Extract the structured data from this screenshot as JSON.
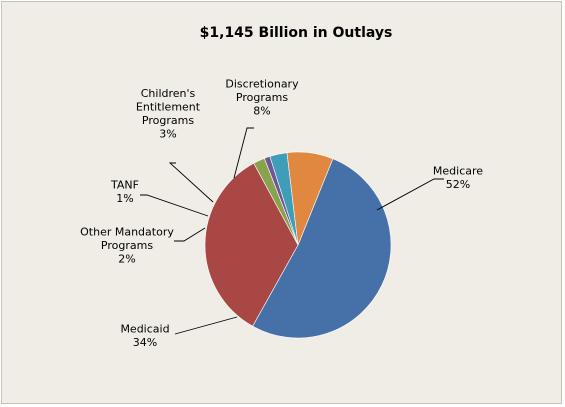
{
  "chart_data": {
    "type": "pie",
    "title": "$1,145 Billion in Outlays",
    "start_angle_deg": 22,
    "direction": "clockwise",
    "slices": [
      {
        "name": "Medicare",
        "value": 52,
        "label_lines": [
          "Medicare",
          "52%"
        ],
        "color": "#4570a8"
      },
      {
        "name": "Medicaid",
        "value": 34,
        "label_lines": [
          "Medicaid",
          "34%"
        ],
        "color": "#a84744"
      },
      {
        "name": "Other Mandatory Programs",
        "value": 2,
        "label_lines": [
          "Other Mandatory",
          "Programs",
          "2%"
        ],
        "color": "#88a24e"
      },
      {
        "name": "TANF",
        "value": 1,
        "label_lines": [
          "TANF",
          "1%"
        ],
        "color": "#6e5697"
      },
      {
        "name": "Children's Entitlement Programs",
        "value": 3,
        "label_lines": [
          "Children's",
          "Entitlement",
          "Programs",
          "3%"
        ],
        "color": "#3e9db8"
      },
      {
        "name": "Discretionary Programs",
        "value": 8,
        "label_lines": [
          "Discretionary",
          "Programs",
          "8%"
        ],
        "color": "#e0883f"
      }
    ]
  }
}
